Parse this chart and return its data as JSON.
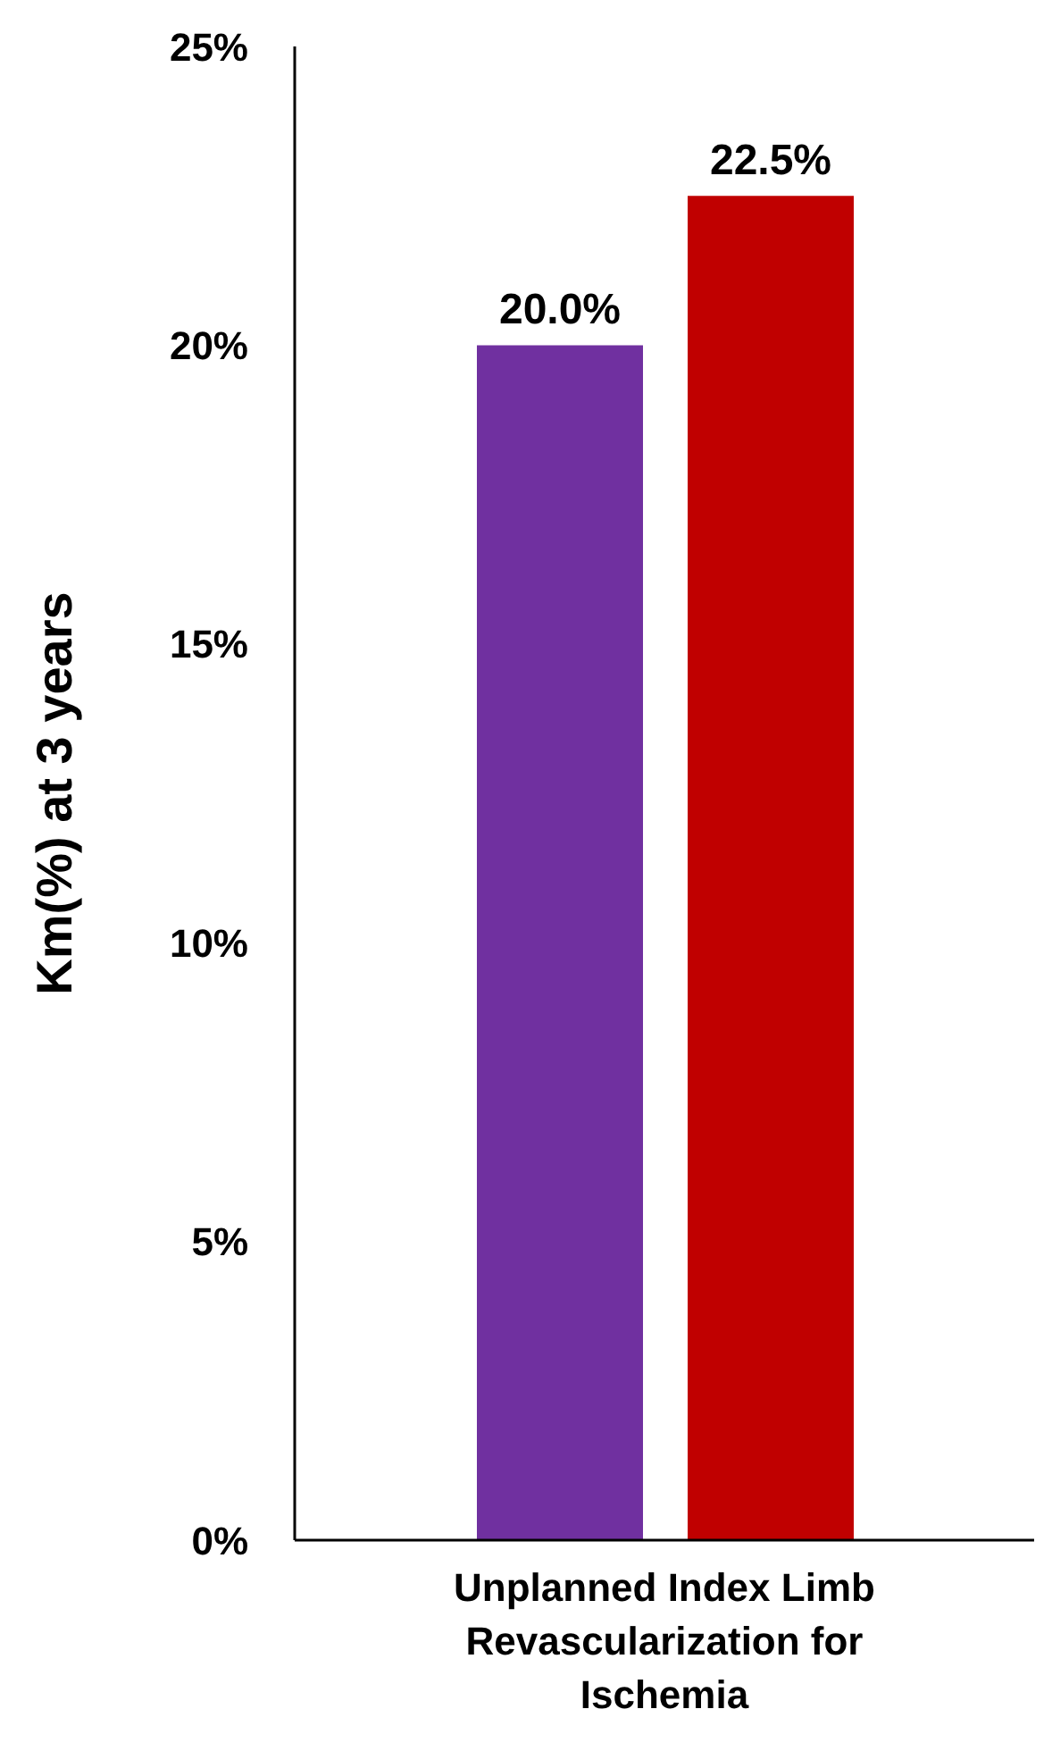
{
  "chart_data": {
    "type": "bar",
    "categories": [
      "Unplanned Index Limb Revascularization for Ischemia"
    ],
    "series": [
      {
        "color": "#7030a0",
        "values": [
          20.0
        ],
        "value_labels": [
          "20.0%"
        ]
      },
      {
        "color": "#c00000",
        "values": [
          22.5
        ],
        "value_labels": [
          "22.5%"
        ]
      }
    ],
    "ylabel": "Km(%) at 3 years",
    "ylim": [
      0,
      25
    ],
    "yticks": [
      {
        "value": 0,
        "label": "0%"
      },
      {
        "value": 5,
        "label": "5%"
      },
      {
        "value": 10,
        "label": "10%"
      },
      {
        "value": 15,
        "label": "15%"
      },
      {
        "value": 20,
        "label": "20%"
      },
      {
        "value": 25,
        "label": "25%"
      }
    ],
    "grid": false,
    "legend": false
  }
}
